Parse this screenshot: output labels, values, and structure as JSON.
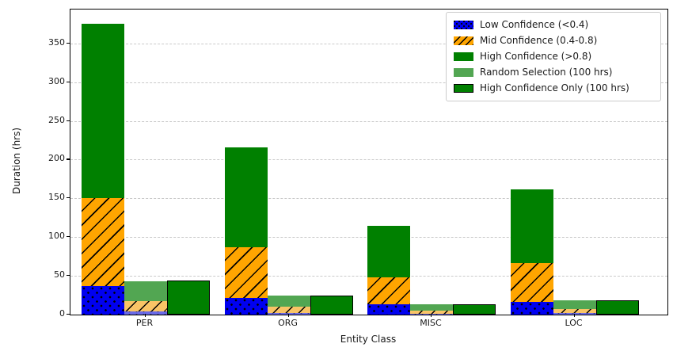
{
  "chart_data": {
    "type": "bar",
    "title": "",
    "xlabel": "Entity Class",
    "ylabel": "Duration (hrs)",
    "categories": [
      "PER",
      "ORG",
      "MISC",
      "LOC"
    ],
    "yticks": [
      0,
      50,
      100,
      150,
      200,
      250,
      300,
      350
    ],
    "ylim": [
      0,
      394
    ],
    "grid": "horizontal dashed",
    "legend_position": "upper right",
    "bar_style": "three bars per category: main stacked bar, scaled random-selection stacked bar, solid outlined bar",
    "series": [
      {
        "name": "Low Confidence (<0.4)",
        "role": "main-stack-bottom",
        "pattern": "dots",
        "values": [
          37,
          21,
          13,
          16
        ]
      },
      {
        "name": "Mid Confidence (0.4-0.8)",
        "role": "main-stack-middle",
        "pattern": "hatch",
        "values": [
          113,
          66,
          35,
          50
        ]
      },
      {
        "name": "High Confidence (>0.8)",
        "role": "main-stack-top",
        "pattern": "solid",
        "values": [
          225,
          129,
          67,
          96
        ]
      },
      {
        "name": "Random Selection (100 hrs)",
        "role": "mini-stack",
        "pattern": "solid",
        "totals": [
          43.2,
          24.9,
          13.2,
          18.7
        ],
        "segments": [
          [
            4.3,
            13.0,
            25.9
          ],
          [
            2.4,
            7.6,
            14.9
          ],
          [
            1.5,
            4.0,
            7.7
          ],
          [
            1.8,
            5.8,
            11.1
          ]
        ]
      },
      {
        "name": "High Confidence Only (100 hrs)",
        "role": "solo-outlined",
        "pattern": "solid-outlined",
        "values": [
          43.5,
          25.0,
          13.0,
          18.6
        ]
      }
    ],
    "colors": {
      "low": "#0000F0",
      "mid": "#FFA500",
      "high": "#008000",
      "random_low": "#6A6AE8",
      "random_mid": "#F9C466",
      "random_high": "#52A652",
      "grid": "#C9C9C9"
    }
  }
}
